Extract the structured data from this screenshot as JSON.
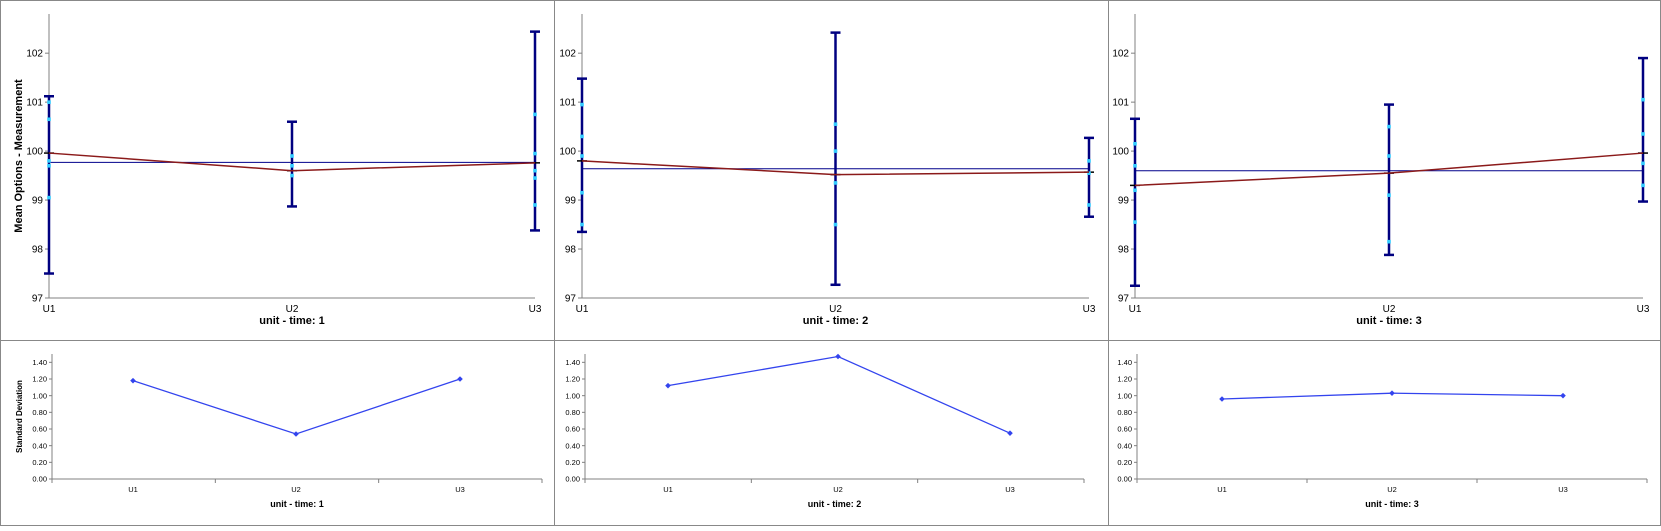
{
  "chart_data": [
    {
      "type": "line",
      "kind": "mean-errorbar",
      "title": "unit - time: 1",
      "ylabel": "Mean Options - Measurement",
      "categories": [
        "U1",
        "U2",
        "U3"
      ],
      "ylim": [
        97,
        102.8
      ],
      "yticks": [
        "97",
        "98",
        "99",
        "100",
        "101",
        "102"
      ],
      "grand_mean": 99.77,
      "means": [
        99.96,
        99.6,
        99.76
      ],
      "err_upper": [
        101.12,
        100.6,
        102.44
      ],
      "err_lower": [
        97.5,
        98.87,
        98.38
      ],
      "observations": [
        [
          101.0,
          100.65,
          99.8,
          99.7,
          99.05
        ],
        [
          99.9,
          99.7,
          99.5
        ],
        [
          100.75,
          99.95,
          99.6,
          99.45,
          98.9
        ]
      ],
      "colors": {
        "mean_line": "#8b1a1a",
        "grand_mean": "#00008b",
        "error_bar": "#000080",
        "points": "#33ccff"
      }
    },
    {
      "type": "line",
      "kind": "mean-errorbar",
      "title": "unit - time: 2",
      "ylabel": "",
      "categories": [
        "U1",
        "U2",
        "U3"
      ],
      "ylim": [
        97,
        102.8
      ],
      "yticks": [
        "97",
        "98",
        "99",
        "100",
        "101",
        "102"
      ],
      "grand_mean": 99.64,
      "means": [
        99.8,
        99.52,
        99.57
      ],
      "err_upper": [
        101.48,
        102.42,
        100.27
      ],
      "err_lower": [
        98.35,
        97.27,
        98.66
      ],
      "observations": [
        [
          100.95,
          100.3,
          99.9,
          99.15,
          98.5
        ],
        [
          100.55,
          100.0,
          99.35,
          98.5
        ],
        [
          99.8,
          99.55,
          98.9
        ]
      ],
      "colors": {
        "mean_line": "#8b1a1a",
        "grand_mean": "#00008b",
        "error_bar": "#000080",
        "points": "#33ccff"
      }
    },
    {
      "type": "line",
      "kind": "mean-errorbar",
      "title": "unit - time: 3",
      "ylabel": "",
      "categories": [
        "U1",
        "U2",
        "U3"
      ],
      "ylim": [
        97,
        102.8
      ],
      "yticks": [
        "97",
        "98",
        "99",
        "100",
        "101",
        "102"
      ],
      "grand_mean": 99.6,
      "means": [
        99.3,
        99.55,
        99.96
      ],
      "err_upper": [
        100.66,
        100.95,
        101.9
      ],
      "err_lower": [
        97.25,
        97.88,
        98.97
      ],
      "observations": [
        [
          100.15,
          99.7,
          99.2,
          98.55
        ],
        [
          100.5,
          99.9,
          99.1,
          98.15
        ],
        [
          101.05,
          100.35,
          99.75,
          99.3
        ]
      ],
      "colors": {
        "mean_line": "#8b1a1a",
        "grand_mean": "#00008b",
        "error_bar": "#000080",
        "points": "#33ccff"
      }
    },
    {
      "type": "line",
      "kind": "stdev",
      "title": "unit - time: 1",
      "ylabel": "Standard Deviation",
      "categories": [
        "U1",
        "U2",
        "U3"
      ],
      "ylim": [
        0,
        1.5
      ],
      "yticks": [
        "0.00",
        "0.20",
        "0.40",
        "0.60",
        "0.80",
        "1.00",
        "1.20",
        "1.40"
      ],
      "values": [
        1.18,
        0.54,
        1.2
      ],
      "colors": {
        "line": "#3344ee"
      }
    },
    {
      "type": "line",
      "kind": "stdev",
      "title": "unit - time: 2",
      "ylabel": "",
      "categories": [
        "U1",
        "U2",
        "U3"
      ],
      "ylim": [
        0,
        1.5
      ],
      "yticks": [
        "0.00",
        "0.20",
        "0.40",
        "0.60",
        "0.80",
        "1.00",
        "1.20",
        "1.40"
      ],
      "values": [
        1.12,
        1.47,
        0.55
      ],
      "colors": {
        "line": "#3344ee"
      }
    },
    {
      "type": "line",
      "kind": "stdev",
      "title": "unit - time: 3",
      "ylabel": "",
      "categories": [
        "U1",
        "U2",
        "U3"
      ],
      "ylim": [
        0,
        1.5
      ],
      "yticks": [
        "0.00",
        "0.20",
        "0.40",
        "0.60",
        "0.80",
        "1.00",
        "1.20",
        "1.40"
      ],
      "values": [
        0.96,
        1.03,
        1.0
      ],
      "colors": {
        "line": "#3344ee"
      }
    }
  ]
}
